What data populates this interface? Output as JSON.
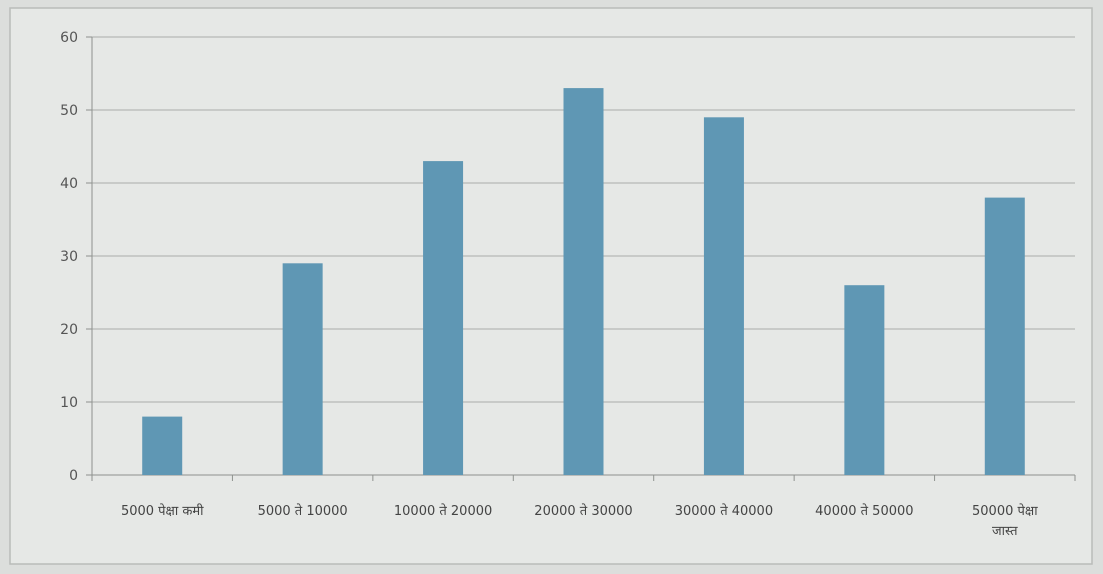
{
  "chart_data": {
    "type": "bar",
    "categories": [
      "5000 पेक्षा कमी",
      "5000 ते 10000",
      "10000 ते 20000",
      "20000 ते 30000",
      "30000 ते 40000",
      "40000 ते 50000",
      "50000 पेक्षा जास्त"
    ],
    "category_lines": [
      [
        "5000 पेक्षा कमी"
      ],
      [
        "5000 ते 10000"
      ],
      [
        "10000 ते 20000"
      ],
      [
        "20000 ते 30000"
      ],
      [
        "30000 ते 40000"
      ],
      [
        "40000 ते 50000"
      ],
      [
        "50000 पेक्षा",
        "जास्त"
      ]
    ],
    "values": [
      8,
      29,
      43,
      53,
      49,
      26,
      38
    ],
    "yticks": [
      0,
      10,
      20,
      30,
      40,
      50,
      60
    ],
    "ylim": [
      0,
      60
    ],
    "grid": true,
    "bar_color": "#5f97b4"
  }
}
